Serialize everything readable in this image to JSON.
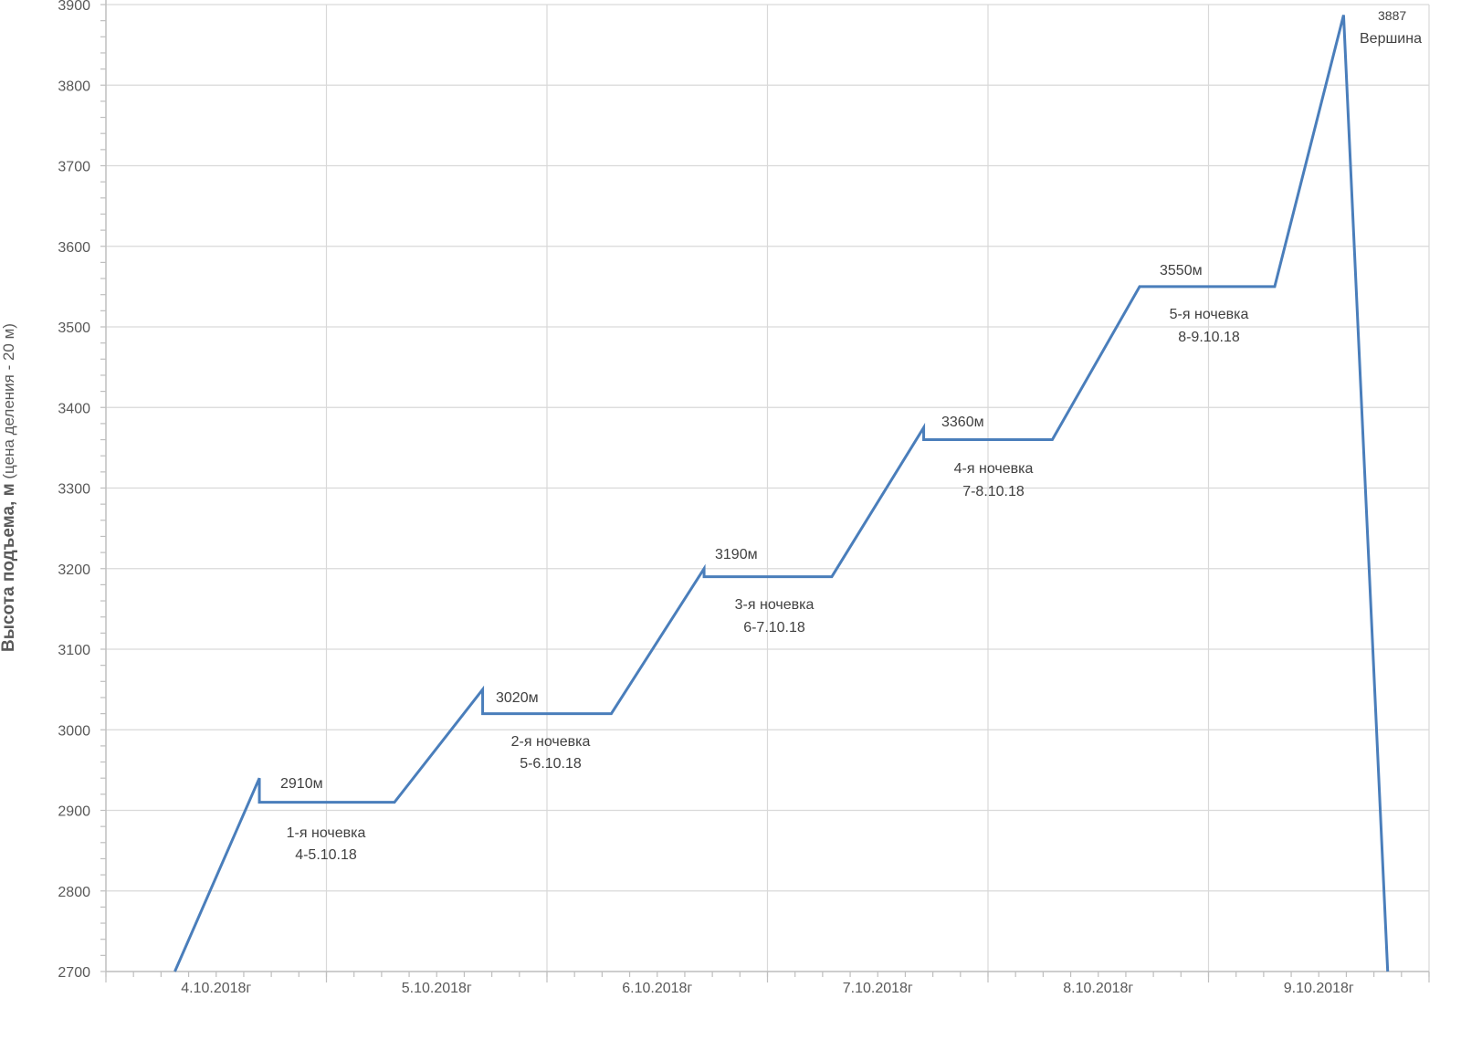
{
  "chart_data": {
    "type": "line",
    "title": "",
    "xlabel": "",
    "ylabel_bold": "Высота подъема, м",
    "ylabel_note": " (цена деления - 20 м)",
    "ylim": [
      2700,
      3900
    ],
    "y_major_step": 100,
    "y_minor_step": 20,
    "xlim_hours": [
      0,
      144
    ],
    "x_minor_step_hours": 3,
    "grid": true,
    "y_ticks": [
      "2700",
      "2800",
      "2900",
      "3000",
      "3100",
      "3200",
      "3300",
      "3400",
      "3500",
      "3600",
      "3700",
      "3800",
      "3900"
    ],
    "x_tick_labels": [
      "4.10.2018г",
      "5.10.2018г",
      "6.10.2018г",
      "7.10.2018г",
      "8.10.2018г",
      "9.10.2018г"
    ],
    "line_color": "#4a7ebb",
    "series": [
      {
        "name": "Высота",
        "x_hours": [
          7.5,
          16.7,
          16.7,
          31.4,
          41,
          41,
          55,
          65.1,
          65.1,
          79,
          89,
          89,
          103,
          112.5,
          127.2,
          134.7,
          139.5
        ],
        "values": [
          2700,
          2940,
          2910,
          2910,
          3050,
          3020,
          3020,
          3200,
          3190,
          3190,
          3375,
          3360,
          3360,
          3550,
          3550,
          3887,
          2700
        ]
      }
    ],
    "annotations": {
      "a1_alt": "2910м",
      "a1_name": "1-я ночевка",
      "a1_date": "4-5.10.18",
      "a2_alt": "3020м",
      "a2_name": "2-я ночевка",
      "a2_date": "5-6.10.18",
      "a3_alt": "3190м",
      "a3_name": "3-я ночевка",
      "a3_date": "6-7.10.18",
      "a4_alt": "3360м",
      "a4_name": "4-я ночевка",
      "a4_date": "7-8.10.18",
      "a5_alt": "3550м",
      "a5_name": "5-я ночевка",
      "a5_date": "8-9.10.18",
      "summit_alt": "3887",
      "summit_name": "Вершина"
    }
  }
}
